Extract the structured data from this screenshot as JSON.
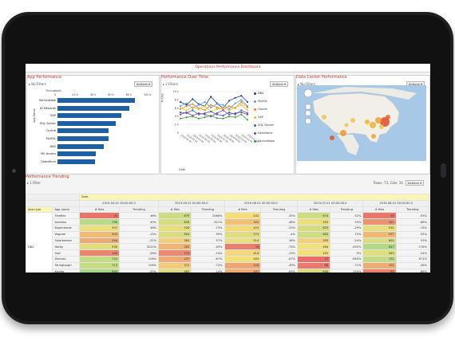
{
  "app_title": "Operations Performance Dashboard",
  "panels": {
    "app_perf": {
      "title": "App Performance",
      "filter": "No Filters",
      "actions": "Actions",
      "axis_title": "Throughput",
      "ylabel": "App Name",
      "ticks": [
        "0",
        "20 k",
        "40 k",
        "60 k",
        "80 k",
        "100 k"
      ]
    },
    "perf_time": {
      "title": "Performance Over Time",
      "filter": "2 Filters",
      "actions": "Actions",
      "ylabel": "# Files",
      "xlabel": "Date",
      "yticks": [
        "10 k",
        "8 k",
        "6 k",
        "4 k",
        "2 k",
        "0"
      ]
    },
    "dc_perf": {
      "title": "Data Center Performance",
      "filter": "No Filters",
      "actions": "Actions"
    }
  },
  "chart_data": [
    {
      "type": "bar",
      "title": "App Performance",
      "xlabel": "Throughput",
      "ylabel": "App Name",
      "categories": [
        "ServiceNow",
        "JD Edwards",
        "SAP",
        "SQL Server",
        "Oracle",
        "MySQL",
        "DB2",
        "MS Access",
        "Salesforce"
      ],
      "values": [
        87,
        80,
        71,
        65,
        57,
        57,
        52,
        43,
        42
      ],
      "xlim": [
        0,
        100
      ],
      "tick_labels": [
        "0",
        "20 k",
        "40 k",
        "60 k",
        "80 k",
        "100 k"
      ]
    },
    {
      "type": "line",
      "title": "Performance Over Time",
      "ylabel": "# Files",
      "xlabel": "Date",
      "ylim": [
        0,
        10
      ],
      "x": [
        "2019-01-01",
        "2019-02-01",
        "2019-03-01",
        "2019-04-01",
        "2019-05-01",
        "2019-06-01",
        "2019-07-01",
        "2019-08-01",
        "2019-09-01",
        "2019-10-01",
        "2019-11-01",
        "2019-12-01"
      ],
      "series": [
        {
          "name": "DB2",
          "color": "#1f3f8f",
          "values": [
            7.5,
            6.8,
            8.2,
            7.0,
            6.5,
            8.8,
            7.2,
            6.0,
            7.8,
            8.5,
            9.0,
            7.5
          ]
        },
        {
          "name": "MySQL",
          "color": "#5aa0d8",
          "values": [
            6.5,
            7.2,
            6.0,
            6.8,
            7.5,
            6.2,
            7.0,
            6.8,
            5.8,
            7.2,
            8.0,
            6.5
          ]
        },
        {
          "name": "Oracle",
          "color": "#f08020",
          "values": [
            5.8,
            6.5,
            7.0,
            6.0,
            5.5,
            6.8,
            6.2,
            5.8,
            6.5,
            6.0,
            7.5,
            6.2
          ]
        },
        {
          "name": "SAP",
          "color": "#e8c020",
          "values": [
            6.0,
            5.5,
            6.2,
            5.8,
            6.5,
            5.2,
            5.8,
            6.0,
            5.5,
            6.2,
            6.8,
            5.5
          ]
        },
        {
          "name": "SQL Server",
          "color": "#4060b0",
          "values": [
            5.0,
            4.8,
            5.5,
            4.5,
            4.8,
            5.2,
            4.5,
            4.2,
            5.0,
            4.5,
            5.5,
            4.8
          ]
        },
        {
          "name": "Salesforce",
          "color": "#8040a0",
          "values": [
            4.5,
            5.0,
            4.2,
            4.8,
            4.5,
            4.0,
            4.8,
            5.5,
            4.5,
            4.8,
            5.0,
            4.5
          ]
        },
        {
          "name": "ServiceNow",
          "color": "#40a040",
          "values": [
            3.5,
            3.8,
            4.0,
            3.5,
            3.8,
            4.2,
            3.6,
            3.5,
            4.0,
            3.8,
            4.5,
            3.2
          ]
        }
      ]
    }
  ],
  "trending": {
    "title": "Performance Trending",
    "filter": "1 Filter",
    "rows_cols": "Rows: 73, Cols: 10",
    "actions": "Actions",
    "date_label": "Date",
    "col_app_type": "App type",
    "col_app_name": "App name",
    "app_type": "DB2",
    "dates": [
      "2019-04-01 00:00:00.0",
      "2019-05-01 00:00:00.0",
      "2019-06-01 00:00:00.0",
      "2019-07-01 00:00:00.0",
      "2019-08-01 00:00:00.0"
    ],
    "sub_files": "# files",
    "sub_trending": "Trending",
    "rows": [
      {
        "name": "Treeflex",
        "cells": [
          "40",
          "46%",
          "679",
          "2066%",
          "442",
          "-35%",
          "674",
          "52%",
          "48",
          "-93%"
        ]
      },
      {
        "name": "Andalax",
        "cells": [
          "796",
          "40%",
          "626",
          "-321%",
          "325",
          "-48%",
          "503",
          "55%",
          "161",
          "-68%"
        ]
      },
      {
        "name": "Kopenbrook",
        "cells": [
          "507",
          "46%",
          "526",
          "-73%",
          "423",
          "-20%",
          "625",
          "-29%",
          "532",
          "-15%"
        ]
      },
      {
        "name": "Vagram",
        "cells": [
          "309",
          "-15%",
          "604",
          "95%",
          "579",
          "-4%",
          "663",
          "15%",
          "297",
          "-55%"
        ]
      },
      {
        "name": "Solarbreeze",
        "cells": [
          "244",
          "-21%",
          "384",
          "57%",
          "514",
          "36%",
          "393",
          "-24%",
          "600",
          "53%"
        ]
      },
      {
        "name": "Hatity",
        "cells": [
          "556",
          "3222%",
          "283",
          "-45%",
          "78",
          "-73%",
          "464",
          "-495%",
          "847",
          "-176%"
        ]
      },
      {
        "name": "Siwr",
        "cells": [
          "108",
          "-26%",
          "123",
          "-14%",
          "414",
          "-13%",
          "455",
          "-9%",
          "563",
          "-24%"
        ]
      },
      {
        "name": "Zontrax",
        "cells": [
          "743",
          "106%",
          "247",
          "-67%",
          "463",
          "-87%",
          "17",
          "-960%",
          "752",
          "-971%"
        ]
      },
      {
        "name": "Stringtough",
        "cells": [
          "713",
          "106%",
          "372",
          "-73%",
          "226",
          "-39%",
          "66",
          "-71%",
          "252",
          "-28%"
        ]
      },
      {
        "name": "Keylex",
        "cells": [
          "904",
          "-55%",
          "587",
          "-14%",
          "247",
          "-63%",
          "630",
          "155%",
          "91",
          "-86%"
        ]
      },
      {
        "name": "Fintone",
        "cells": [
          "135",
          "-37%",
          "653",
          "-2975%",
          "279",
          "-25%",
          "408",
          "-15%",
          "234",
          "-43%"
        ]
      }
    ]
  },
  "colors": {
    "accent": "#c0392b",
    "bar": "#1f5fa6",
    "heat_red": "#e86a6a",
    "heat_yellow": "#f4e07a",
    "heat_green": "#a8d88a"
  }
}
